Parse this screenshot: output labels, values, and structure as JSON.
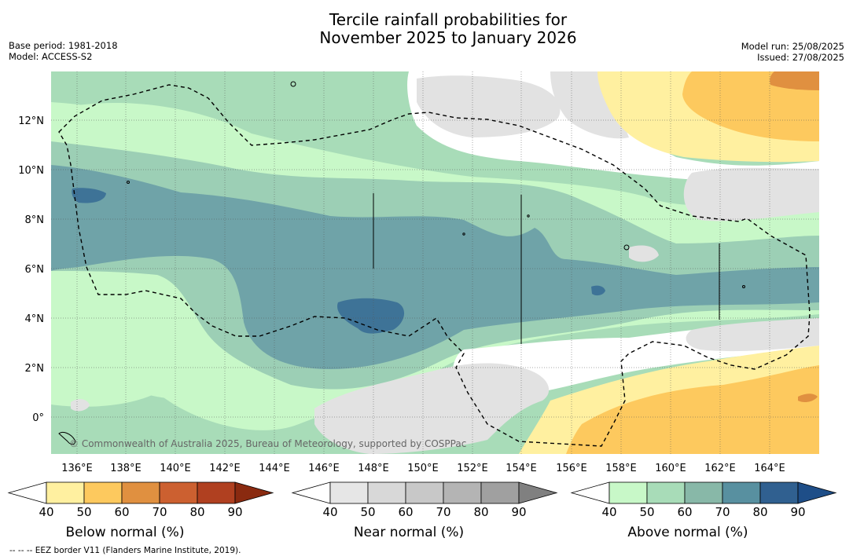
{
  "title_line1": "Tercile rainfall probabilities for",
  "title_line2": "November 2025 to January 2026",
  "base_period": "Base period: 1981-2018",
  "model": "Model: ACCESS-S2",
  "model_run": "Model run: 25/08/2025",
  "issued": "Issued: 27/08/2025",
  "watermark": "© Commonwealth of Australia 2025, Bureau of Meteorology, supported by COSPPac",
  "footer_note": "-- -- -- EEZ border V11 (Flanders Marine Institute, 2019).",
  "lon_labels": [
    "136°E",
    "138°E",
    "140°E",
    "142°E",
    "144°E",
    "146°E",
    "148°E",
    "150°E",
    "152°E",
    "154°E",
    "156°E",
    "158°E",
    "160°E",
    "162°E",
    "164°E"
  ],
  "lat_labels": [
    "12°N",
    "10°N",
    "8°N",
    "6°N",
    "4°N",
    "2°N",
    "0°"
  ],
  "legends": [
    {
      "label": "Below normal (%)",
      "ticks": [
        "40",
        "50",
        "60",
        "70",
        "80",
        "90"
      ],
      "colors": [
        "#fff0a0",
        "#fdc95e",
        "#e09040",
        "#cc6030",
        "#b04020"
      ],
      "arrow_color": "#8a2a10"
    },
    {
      "label": "Near normal (%)",
      "ticks": [
        "40",
        "50",
        "60",
        "70",
        "80",
        "90"
      ],
      "colors": [
        "#e6e6e6",
        "#d8d8d8",
        "#c8c8c8",
        "#b4b4b4",
        "#a0a0a0"
      ],
      "arrow_color": "#808080"
    },
    {
      "label": "Above normal (%)",
      "ticks": [
        "40",
        "50",
        "60",
        "70",
        "80",
        "90"
      ],
      "colors": [
        "#c8f8c8",
        "#a8dcb8",
        "#88b8a8",
        "#5890a0",
        "#306090"
      ],
      "arrow_color": "#1e4e88"
    }
  ]
}
